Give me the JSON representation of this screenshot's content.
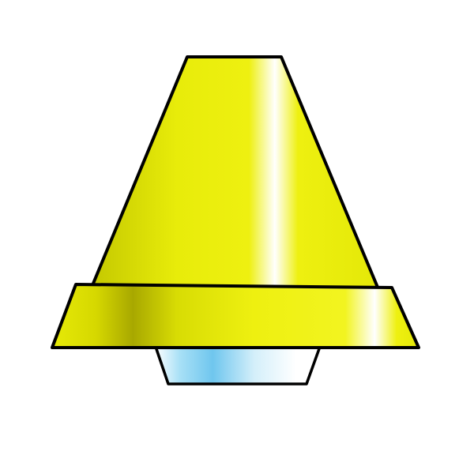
{
  "illustration": {
    "subject": "lamp-shade",
    "colors": {
      "background": "#ffffff",
      "outline": "#000000",
      "shade_base": "#e8ec0a",
      "shade_shadow": "#b4b400",
      "shade_highlight": "#ffffff",
      "band_base": "#e8ec0a",
      "band_shadow": "#a8a800",
      "bulb_light": "#7fd0f0",
      "bulb_pale": "#ffffff"
    }
  }
}
